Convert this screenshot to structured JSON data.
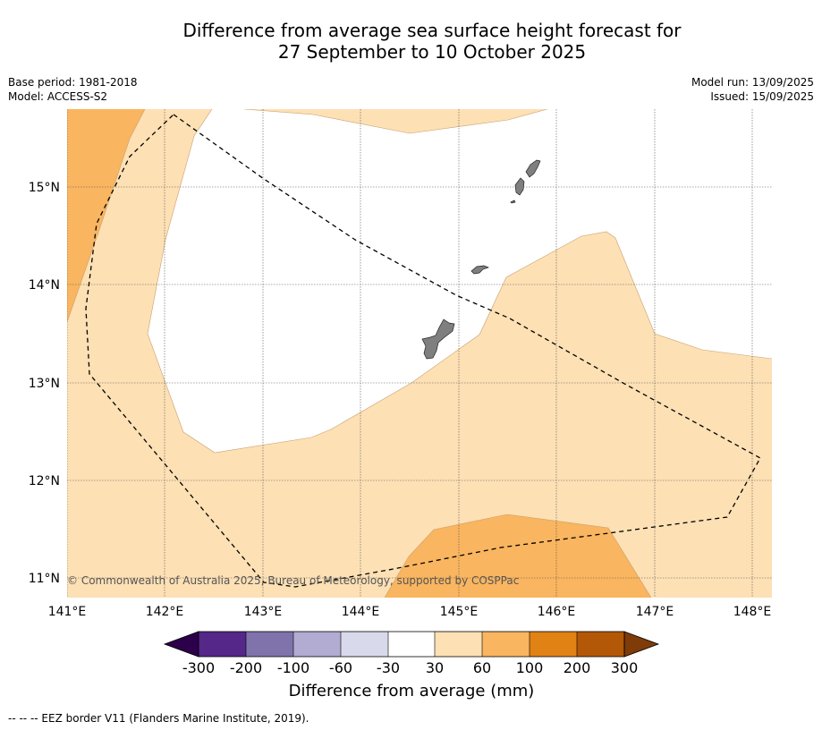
{
  "title": {
    "line1": "Difference from average sea surface height forecast for",
    "line2": "27 September to 10 October 2025"
  },
  "meta": {
    "base_period": "Base period: 1981-2018",
    "model": "Model: ACCESS-S2",
    "model_run": "Model run: 13/09/2025",
    "issued": "Issued: 15/09/2025"
  },
  "map": {
    "lon_labels": [
      "141°E",
      "142°E",
      "143°E",
      "144°E",
      "145°E",
      "146°E",
      "147°E",
      "148°E"
    ],
    "lat_labels": [
      "15°N",
      "14°N",
      "13°N",
      "12°N",
      "11°N"
    ],
    "extent": {
      "lon_min": 141.0,
      "lon_max": 148.2,
      "lat_min": 10.8,
      "lat_max": 15.8
    },
    "copyright": "© Commonwealth of Australia 2025, Bureau of Meteorology, supported by COSPPac",
    "land_color": "#7f7f7f",
    "colors": {
      "30_60": "#fde0b4",
      "60_100": "#f9b55f",
      "100_200": "#e08214",
      "200_300": "#b35806"
    },
    "eez_label": "--  --  -- EEZ border V11 (Flanders Marine Institute, 2019)."
  },
  "colorbar": {
    "title": "Difference from average (mm)",
    "ticks": [
      "-300",
      "-200",
      "-100",
      "-60",
      "-30",
      "30",
      "60",
      "100",
      "200",
      "300"
    ],
    "colors": [
      "#542788",
      "#8073ac",
      "#b2abd2",
      "#d8daeb",
      "#ffffff",
      "#fde0b4",
      "#f9b55f",
      "#e08214",
      "#b35806"
    ],
    "extend_low": "#2d004b",
    "extend_high": "#7f3b08"
  }
}
